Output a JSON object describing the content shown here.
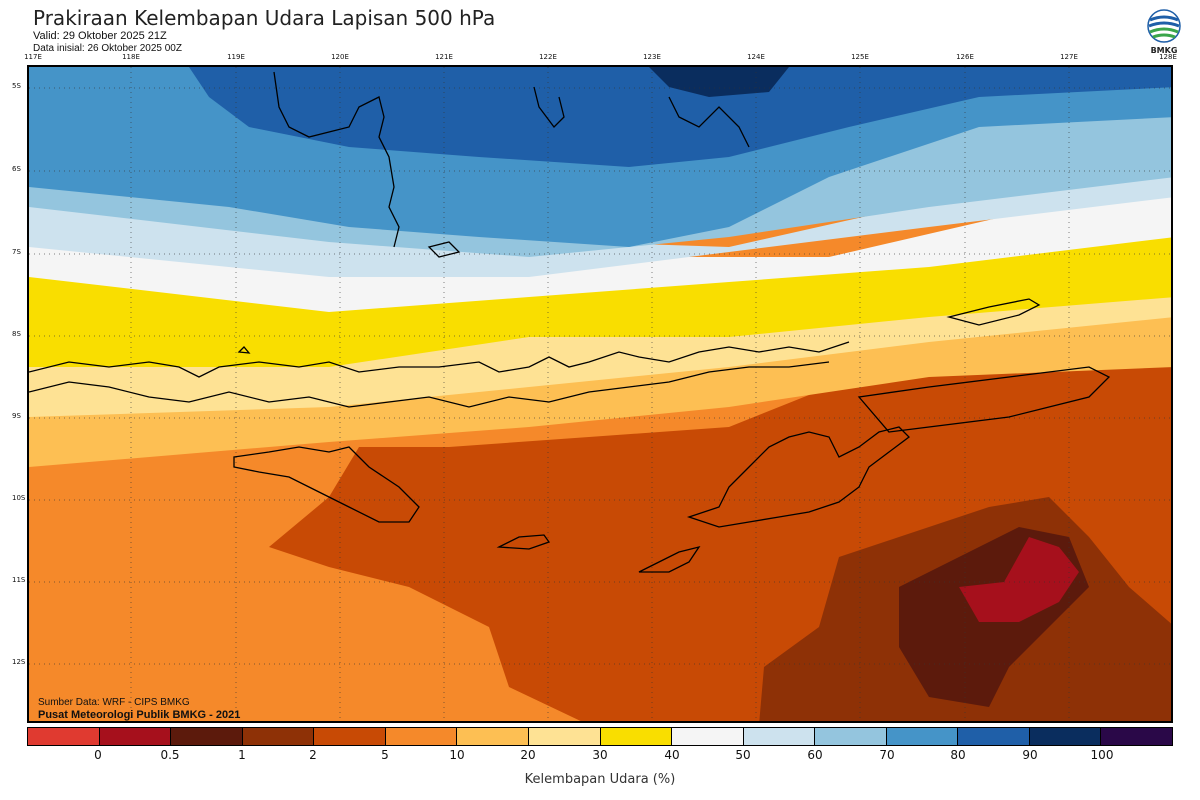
{
  "header": {
    "title": "Prakiraan Kelembapan Udara Lapisan 500 hPa",
    "valid": "Valid: 29 Oktober 2025 21Z",
    "init": "Data inisial: 26 Oktober 2025 00Z"
  },
  "logo": {
    "text": "BMKG"
  },
  "lon_ticks": [
    "117E",
    "118E",
    "119E",
    "120E",
    "121E",
    "122E",
    "123E",
    "124E",
    "125E",
    "126E",
    "127E",
    "128E"
  ],
  "lat_ticks": [
    "5S",
    "6S",
    "7S",
    "8S",
    "9S",
    "10S",
    "11S",
    "12S"
  ],
  "source": {
    "line1": "Sumber Data: WRF - CIPS BMKG",
    "line2": "Pusat Meteorologi Publik BMKG - 2021"
  },
  "colorbar": {
    "colors": [
      "#e03a30",
      "#a6101c",
      "#5c1a0c",
      "#8e3106",
      "#c84a05",
      "#f5892a",
      "#fdbf53",
      "#fee294",
      "#f9de00",
      "#f5f5f5",
      "#cde2ee",
      "#94c5de",
      "#4594c8",
      "#1f5fa8",
      "#0a2d5e",
      "#2a0848"
    ],
    "labels": [
      "0",
      "0.5",
      "1",
      "2",
      "5",
      "10",
      "20",
      "30",
      "40",
      "50",
      "60",
      "70",
      "80",
      "90",
      "100"
    ],
    "title": "Kelembapan Udara (%)"
  },
  "palette": {
    "deep_navy": "#0a2d5e",
    "dark_blue": "#1f5fa8",
    "blue": "#4594c8",
    "light_blue": "#94c5de",
    "pale_blue": "#cde2ee",
    "white": "#f5f5f5",
    "yellow": "#f9de00",
    "light_yellow": "#fee294",
    "light_orange": "#fdbf53",
    "orange": "#f5892a",
    "dark_orange": "#c84a05",
    "brown": "#8e3106",
    "dark_brown": "#5c1a0c",
    "red": "#a6101c"
  }
}
